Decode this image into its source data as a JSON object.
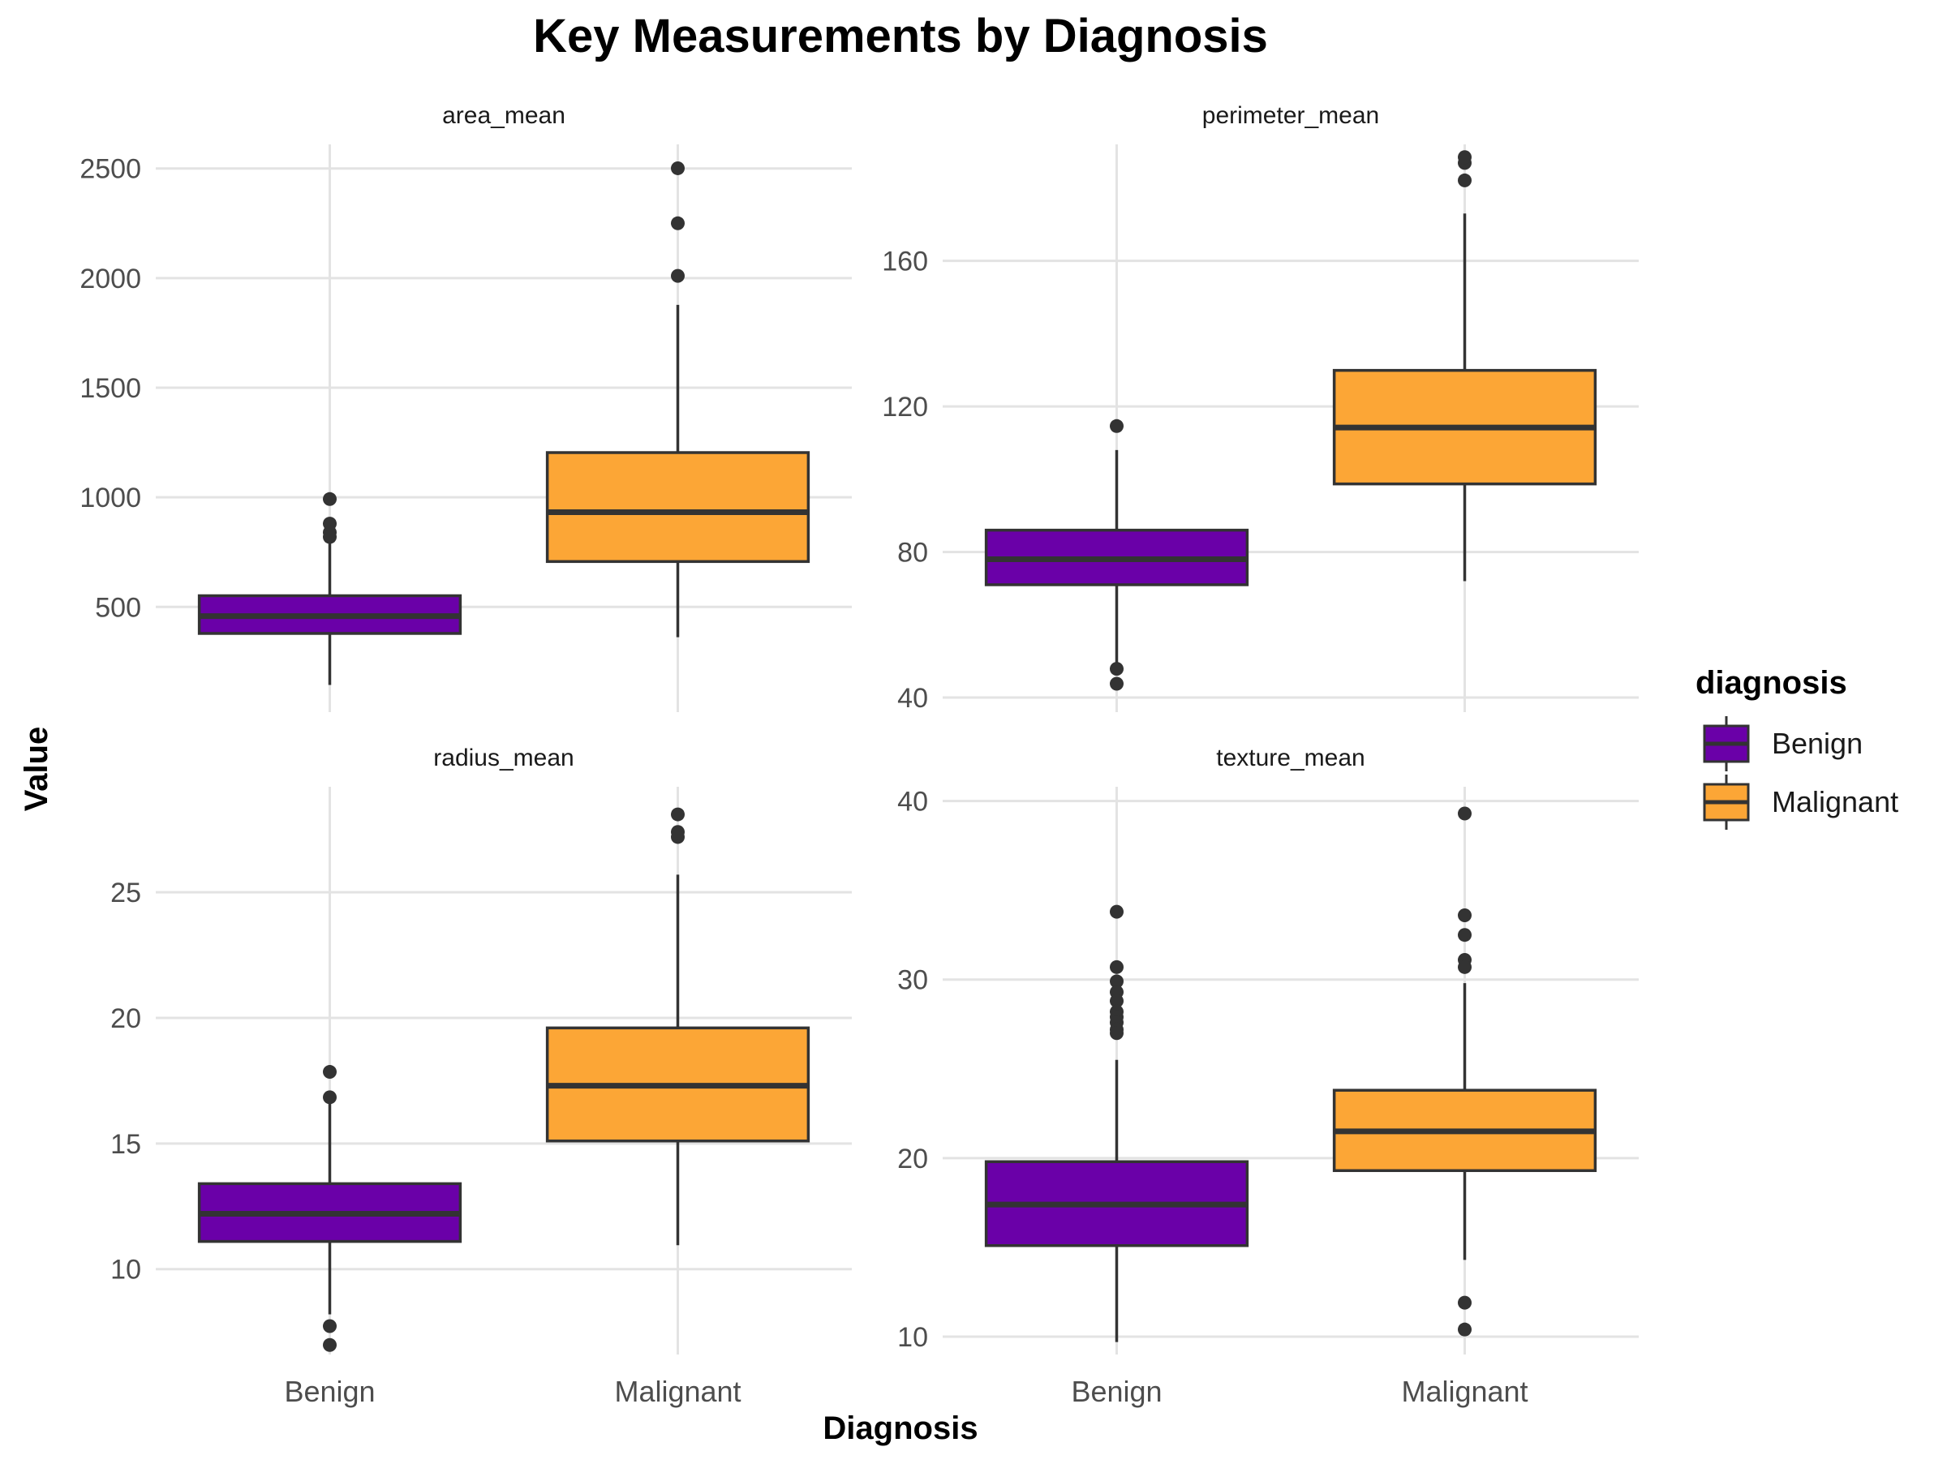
{
  "chart_data": {
    "type": "boxplot",
    "title": "Key Measurements by Diagnosis",
    "xlabel": "Diagnosis",
    "ylabel": "Value",
    "legend": {
      "title": "diagnosis",
      "position": "right",
      "entries": [
        {
          "name": "Benign",
          "color": "#6a00a8"
        },
        {
          "name": "Malignant",
          "color": "#fca636"
        }
      ]
    },
    "categories": [
      "Benign",
      "Malignant"
    ],
    "grid": true,
    "facets": [
      {
        "name": "area_mean",
        "ylim": [
          20,
          2610
        ],
        "yticks": [
          500,
          1000,
          1500,
          2000,
          2500
        ],
        "boxes": [
          {
            "category": "Benign",
            "lower_whisker": 144,
            "q1": 379,
            "median": 458,
            "q3": 551,
            "upper_whisker": 800,
            "outliers": [
              992,
              880,
              840,
              819
            ]
          },
          {
            "category": "Malignant",
            "lower_whisker": 362,
            "q1": 707,
            "median": 932,
            "q3": 1204,
            "upper_whisker": 1878,
            "outliers": [
              2010,
              2250,
              2501
            ]
          }
        ]
      },
      {
        "name": "perimeter_mean",
        "ylim": [
          36,
          192
        ],
        "yticks": [
          40,
          80,
          120,
          160
        ],
        "boxes": [
          {
            "category": "Benign",
            "lower_whisker": 48,
            "q1": 71,
            "median": 78,
            "q3": 86,
            "upper_whisker": 108,
            "outliers": [
              114.6,
              47.9,
              43.8
            ]
          },
          {
            "category": "Malignant",
            "lower_whisker": 72,
            "q1": 98.7,
            "median": 114.2,
            "q3": 129.9,
            "upper_whisker": 173,
            "outliers": [
              182.1,
              186.9,
              188.5
            ]
          }
        ]
      },
      {
        "name": "radius_mean",
        "ylim": [
          6.6,
          29.2
        ],
        "yticks": [
          10,
          15,
          20,
          25
        ],
        "boxes": [
          {
            "category": "Benign",
            "lower_whisker": 8.2,
            "q1": 11.1,
            "median": 12.2,
            "q3": 13.4,
            "upper_whisker": 16.6,
            "outliers": [
              17.85,
              16.84,
              7.73,
              6.98
            ]
          },
          {
            "category": "Malignant",
            "lower_whisker": 10.95,
            "q1": 15.1,
            "median": 17.3,
            "q3": 19.6,
            "upper_whisker": 25.7,
            "outliers": [
              27.2,
              27.4,
              28.1
            ]
          }
        ]
      },
      {
        "name": "texture_mean",
        "ylim": [
          9,
          40.8
        ],
        "yticks": [
          10,
          20,
          30,
          40
        ],
        "boxes": [
          {
            "category": "Benign",
            "lower_whisker": 9.7,
            "q1": 15.1,
            "median": 17.4,
            "q3": 19.8,
            "upper_whisker": 25.5,
            "outliers": [
              33.8,
              30.7,
              29.9,
              29.3,
              28.8,
              28.2,
              27.9,
              27.6,
              27.2,
              27.0
            ]
          },
          {
            "category": "Malignant",
            "lower_whisker": 14.3,
            "q1": 19.3,
            "median": 21.5,
            "q3": 23.8,
            "upper_whisker": 29.8,
            "outliers": [
              39.3,
              33.6,
              32.5,
              31.1,
              30.7,
              11.9,
              10.4
            ]
          }
        ]
      }
    ]
  }
}
